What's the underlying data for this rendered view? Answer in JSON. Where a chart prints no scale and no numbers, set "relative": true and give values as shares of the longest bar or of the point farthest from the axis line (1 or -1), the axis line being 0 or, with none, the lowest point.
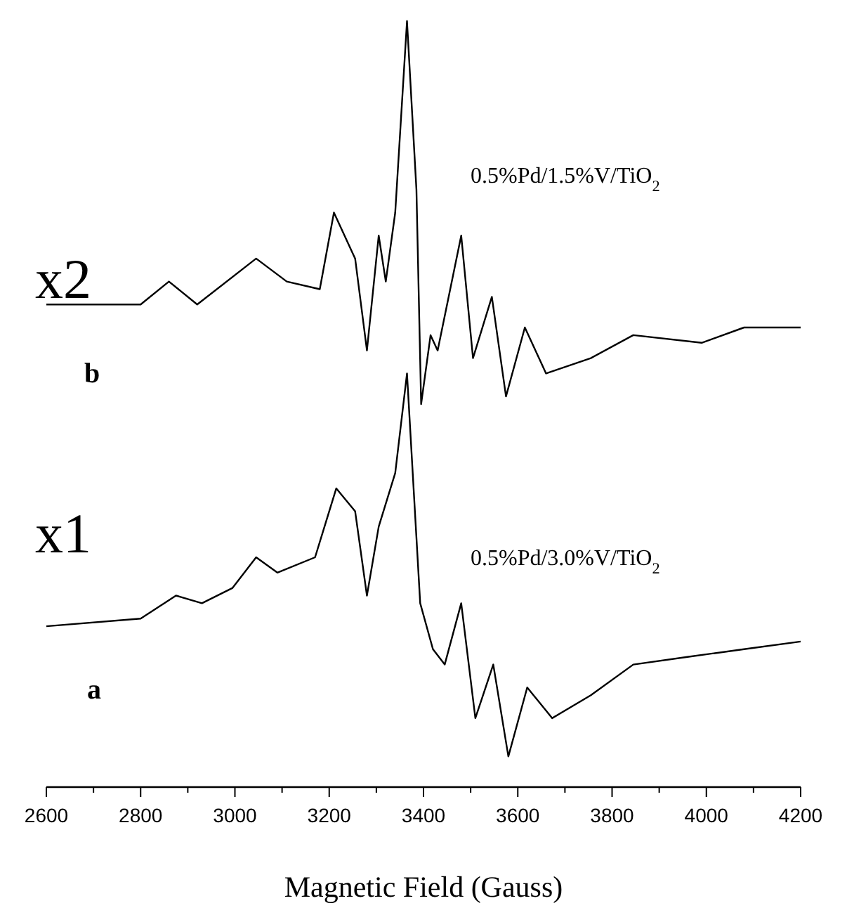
{
  "chart_data": {
    "type": "line",
    "xlabel": "Magnetic Field (Gauss)",
    "relative": true,
    "xlim": [
      2600,
      4200
    ],
    "xticks": [
      2600,
      2800,
      3000,
      3200,
      3400,
      3600,
      3800,
      4000,
      4200
    ],
    "grid": false,
    "marker": "none",
    "line_style": "solid",
    "series": [
      {
        "name": "0.5%Pd/1.5%V/TiO$_{2}$",
        "color": "#000000",
        "x": [
          2600,
          2800,
          2860,
          2920,
          3045,
          3110,
          3180,
          3210,
          3255,
          3280,
          3305,
          3320,
          3340,
          3365,
          3385,
          3395,
          3415,
          3430,
          3480,
          3505,
          3545,
          3575,
          3615,
          3660,
          3755,
          3845,
          3990,
          4080,
          4200
        ],
        "values": [
          0.63,
          0.63,
          0.66,
          0.63,
          0.69,
          0.66,
          0.65,
          0.75,
          0.69,
          0.57,
          0.72,
          0.66,
          0.75,
          1,
          0.78,
          0.5,
          0.59,
          0.57,
          0.72,
          0.56,
          0.64,
          0.51,
          0.6,
          0.54,
          0.56,
          0.59,
          0.58,
          0.6,
          0.6
        ]
      },
      {
        "name": "0.5%Pd/3.0%V/TiO$_{2}$",
        "color": "#000000",
        "x": [
          2600,
          2800,
          2875,
          2930,
          2995,
          3045,
          3090,
          3170,
          3215,
          3255,
          3280,
          3305,
          3340,
          3365,
          3393,
          3420,
          3445,
          3480,
          3510,
          3548,
          3580,
          3620,
          3673,
          3755,
          3845,
          3960,
          4080,
          4200
        ],
        "values": [
          0.21,
          0.22,
          0.25,
          0.24,
          0.26,
          0.3,
          0.28,
          0.3,
          0.39,
          0.36,
          0.25,
          0.34,
          0.41,
          0.54,
          0.24,
          0.18,
          0.16,
          0.24,
          0.09,
          0.16,
          0.04,
          0.13,
          0.09,
          0.12,
          0.16,
          0.17,
          0.18,
          0.19
        ]
      }
    ],
    "annotations": [
      "x2",
      "b",
      "x1",
      "a"
    ]
  }
}
